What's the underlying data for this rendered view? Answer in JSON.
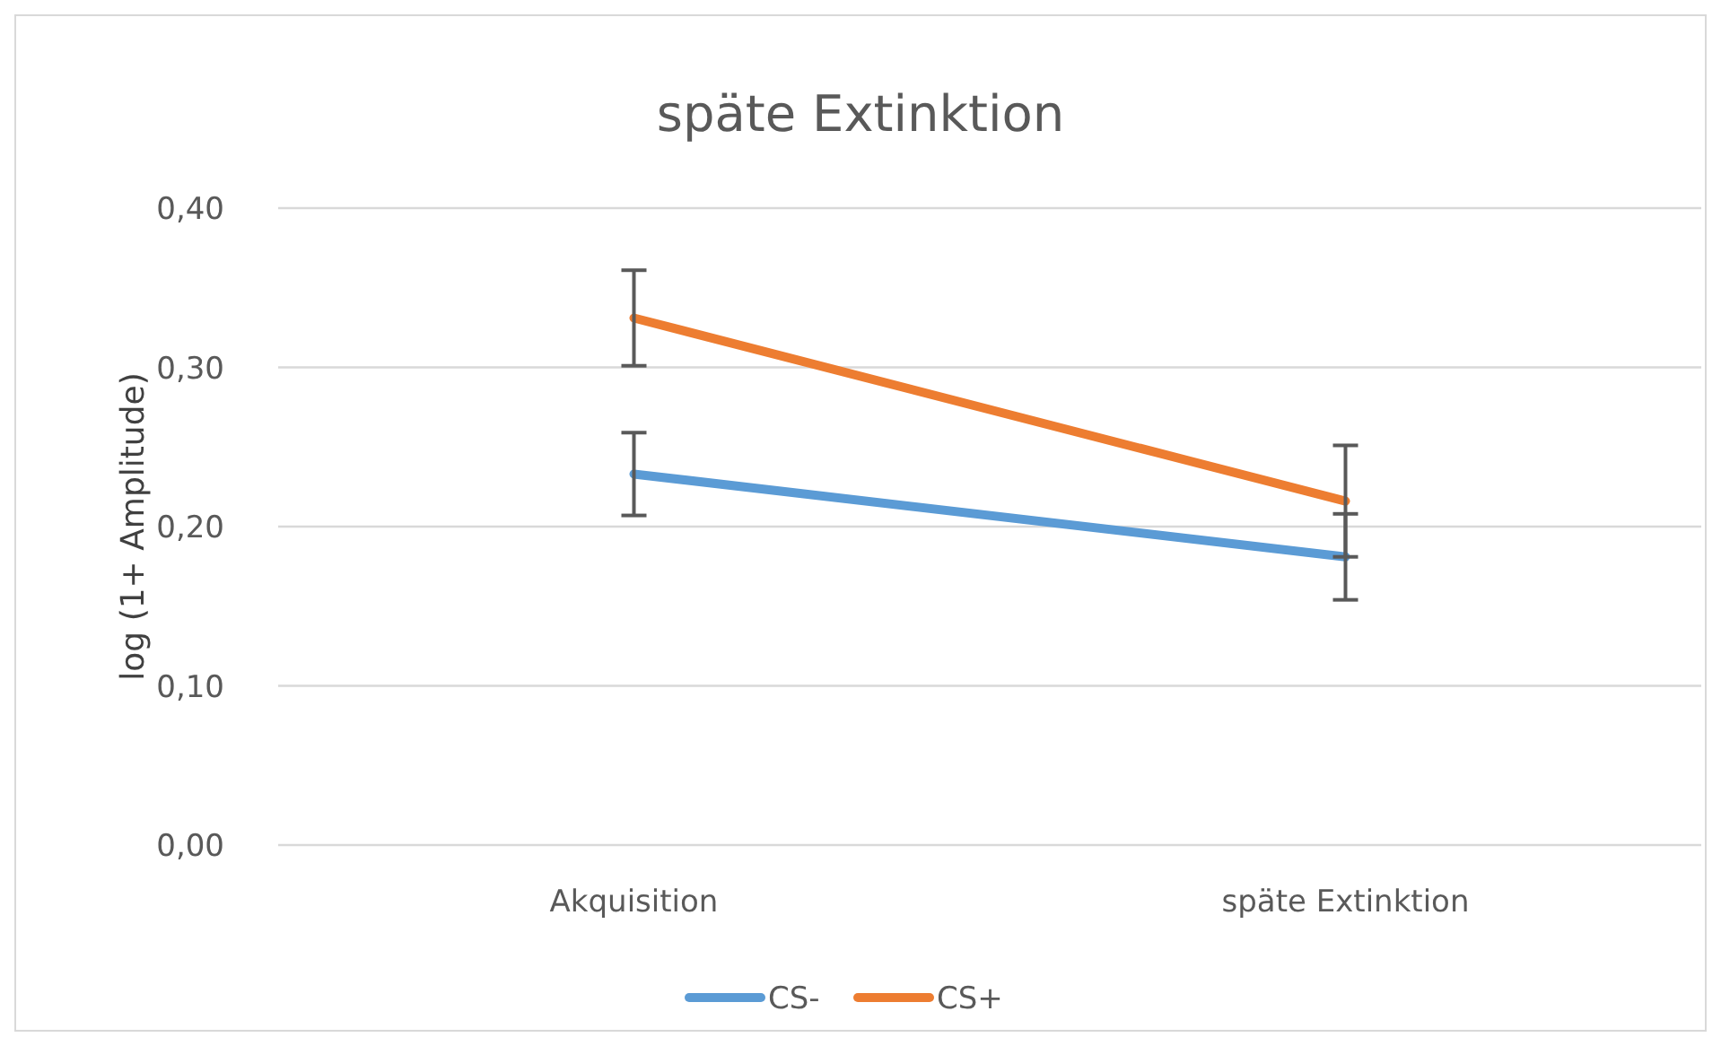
{
  "chart_data": {
    "type": "line",
    "title": "späte Extinktion",
    "ylabel": "log (1+ Amplitude)",
    "categories": [
      "Akquisition",
      "späte Extinktion"
    ],
    "series": [
      {
        "name": "CS-",
        "color": "#5b9bd5",
        "values": [
          0.233,
          0.181
        ],
        "errors": [
          0.026,
          0.027
        ]
      },
      {
        "name": "CS+",
        "color": "#ed7d31",
        "values": [
          0.331,
          0.216
        ],
        "errors": [
          0.03,
          0.035
        ]
      }
    ],
    "ylim": [
      0,
      0.4
    ],
    "yticks": [
      {
        "value": 0,
        "label": "0,00"
      },
      {
        "value": 0.1,
        "label": "0,10"
      },
      {
        "value": 0.2,
        "label": "0,20"
      },
      {
        "value": 0.3,
        "label": "0,30"
      },
      {
        "value": 0.4,
        "label": "0,40"
      }
    ],
    "grid": "y",
    "legend": "bottom",
    "marker": "none",
    "line_style": "solid"
  }
}
